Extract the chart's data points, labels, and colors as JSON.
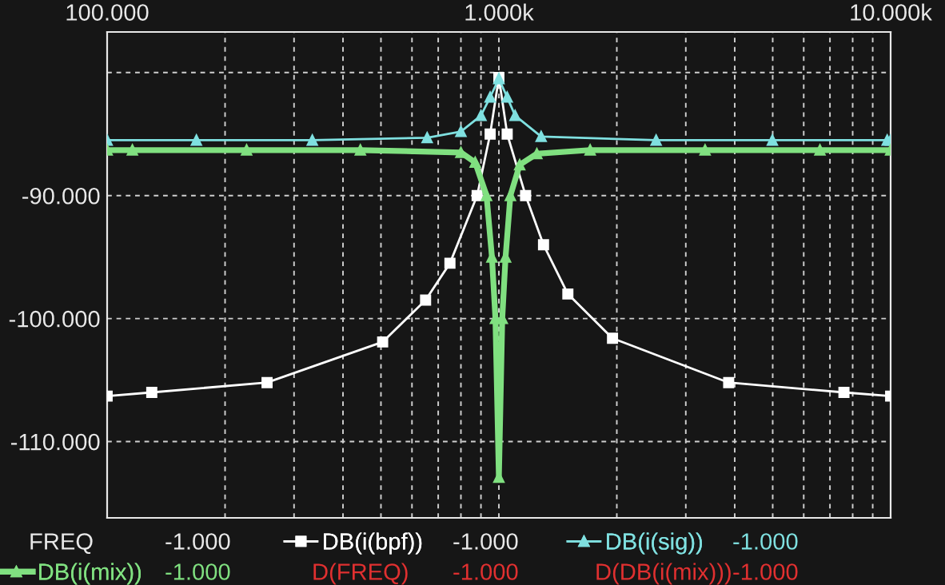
{
  "chart_data": {
    "type": "line",
    "log": "x",
    "grid": true,
    "legend": "bottom",
    "xlim": [
      100,
      10000
    ],
    "xticks": [
      {
        "value": 100,
        "label": "100.000"
      },
      {
        "value": 1000,
        "label": "1.000k"
      },
      {
        "value": 10000,
        "label": "10.000k"
      }
    ],
    "ylim": [
      -116.2,
      -76.7
    ],
    "yticks": [
      {
        "value": -110,
        "label": "-110.000"
      },
      {
        "value": -100,
        "label": "-100.000"
      },
      {
        "value": -90,
        "label": "-90.000"
      },
      {
        "value": -80,
        "label": null
      }
    ],
    "series": [
      {
        "name": "DB(i(bpf))",
        "color": "#ffffff",
        "marker": "square",
        "x": [
          100,
          130,
          256,
          505,
          650,
          750,
          880,
          950,
          1000,
          1050,
          1170,
          1300,
          1500,
          1950,
          3860,
          7600,
          10000
        ],
        "values": [
          -106.3,
          -106.0,
          -105.2,
          -101.9,
          -98.5,
          -95.5,
          -90,
          -85,
          -80.4,
          -85,
          -90,
          -94,
          -98,
          -101.6,
          -105.2,
          -106.0,
          -106.3
        ]
      },
      {
        "name": "DB(i(sig))",
        "color": "#7fe0e0",
        "marker": "triangle",
        "x": [
          100,
          169,
          334,
          656,
          800,
          900,
          950,
          1000,
          1050,
          1100,
          1282,
          2520,
          4990,
          9800,
          10000
        ],
        "values": [
          -85.5,
          -85.5,
          -85.5,
          -85.3,
          -84.8,
          -83.5,
          -82,
          -80.5,
          -82,
          -83.5,
          -85.2,
          -85.5,
          -85.5,
          -85.5,
          -85.5
        ]
      },
      {
        "name": "DB(i(mix))",
        "color": "#80e080",
        "marker": "triangle",
        "x": [
          100,
          116,
          227,
          443,
          800,
          870,
          930,
          960,
          980,
          1000,
          1020,
          1040,
          1070,
          1130,
          1250,
          1710,
          3360,
          6600,
          10000
        ],
        "values": [
          -86.3,
          -86.3,
          -86.3,
          -86.3,
          -86.5,
          -87.3,
          -90,
          -95,
          -100,
          -112.9,
          -100,
          -95,
          -90,
          -87.5,
          -86.6,
          -86.3,
          -86.3,
          -86.3,
          -86.3
        ]
      }
    ],
    "annotations": [
      "FREQ",
      "-1.000",
      "-1.000",
      "-1.000",
      "-1.000",
      "D(FREQ)",
      "-1.000",
      "D(DB(i(mix)))",
      "-1.000"
    ]
  }
}
